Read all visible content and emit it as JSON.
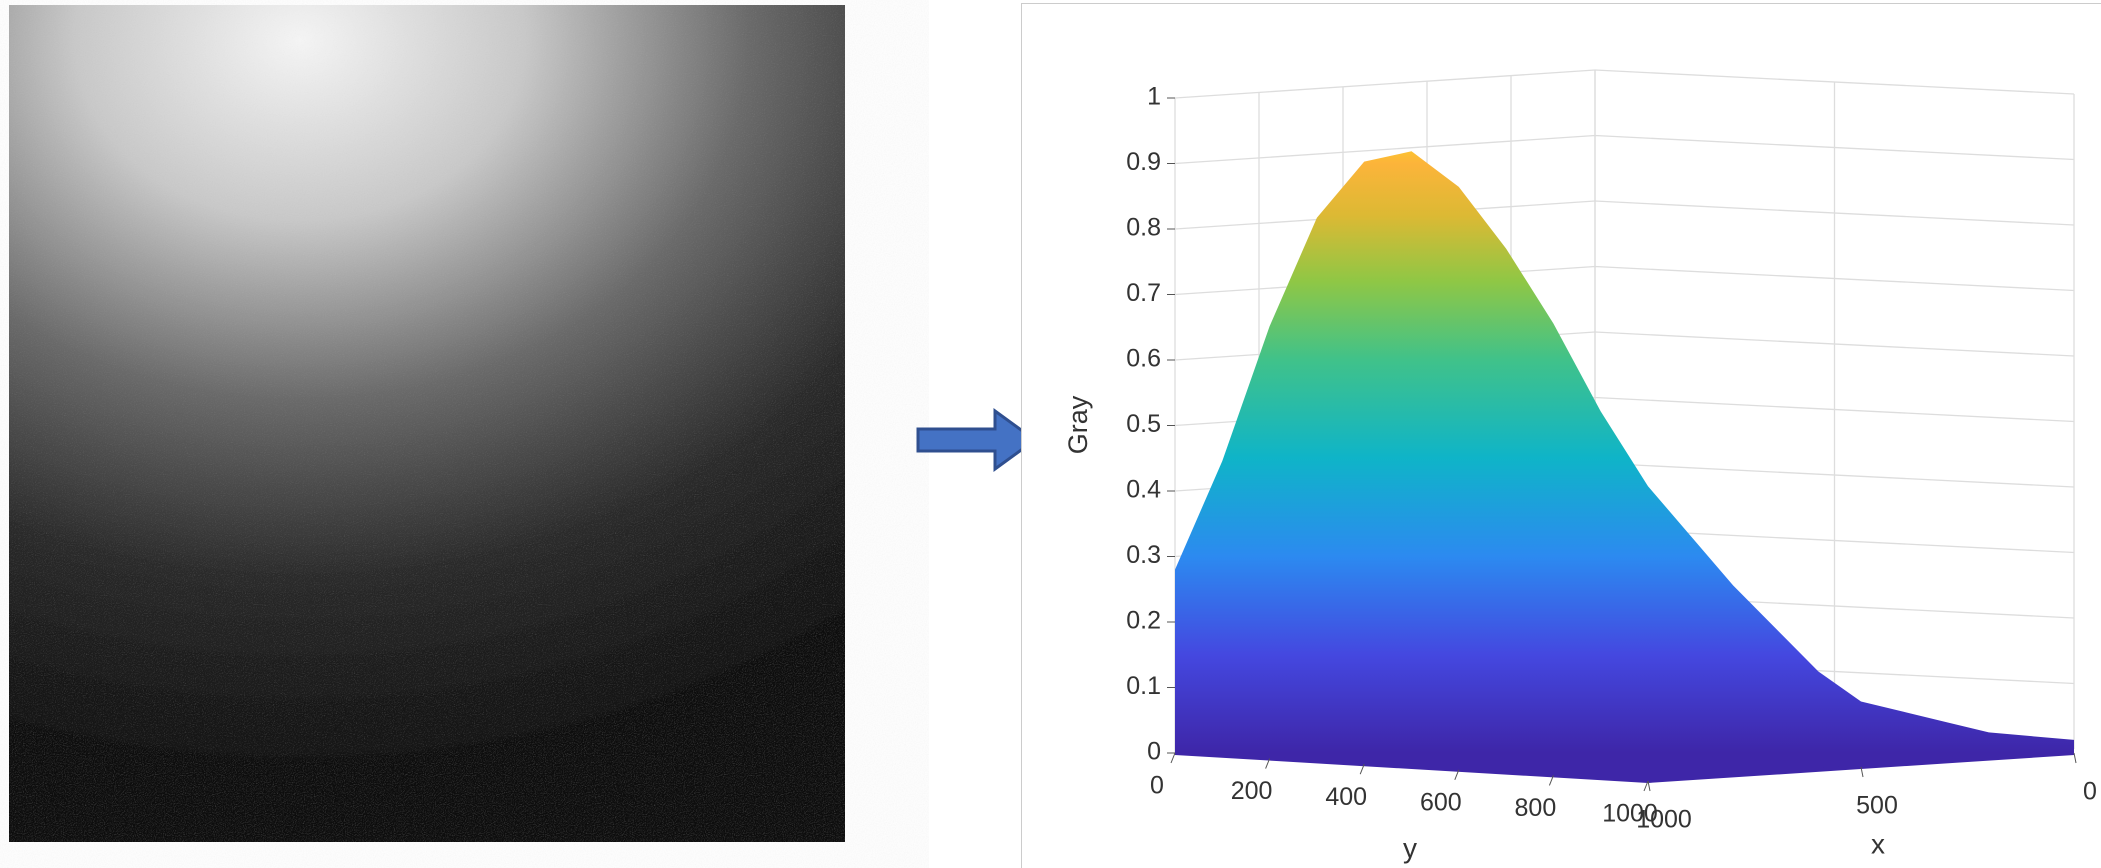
{
  "chart_data": {
    "type": "surface",
    "zlabel": "Gray",
    "ylabel": "y",
    "xlabel": "x",
    "zlim": [
      0,
      1
    ],
    "zticks": [
      0,
      0.1,
      0.2,
      0.3,
      0.4,
      0.5,
      0.6,
      0.7,
      0.8,
      0.9,
      1
    ],
    "ylim": [
      0,
      1000
    ],
    "yticks": [
      0,
      200,
      400,
      600,
      800,
      1000
    ],
    "xlim": [
      1000,
      0
    ],
    "xticks": [
      1000,
      500,
      0
    ],
    "grid": true,
    "y_edge": {
      "y": [
        0,
        100,
        200,
        300,
        400,
        500,
        600,
        700,
        800,
        900,
        1000
      ],
      "values": [
        0.28,
        0.45,
        0.66,
        0.83,
        0.92,
        0.94,
        0.89,
        0.8,
        0.69,
        0.56,
        0.45
      ]
    },
    "x_edge": {
      "x": [
        1000,
        900,
        800,
        700,
        600,
        500,
        400,
        300,
        200,
        100,
        0
      ],
      "values": [
        0.45,
        0.37,
        0.29,
        0.22,
        0.15,
        0.1,
        0.08,
        0.06,
        0.04,
        0.03,
        0.02
      ]
    }
  }
}
